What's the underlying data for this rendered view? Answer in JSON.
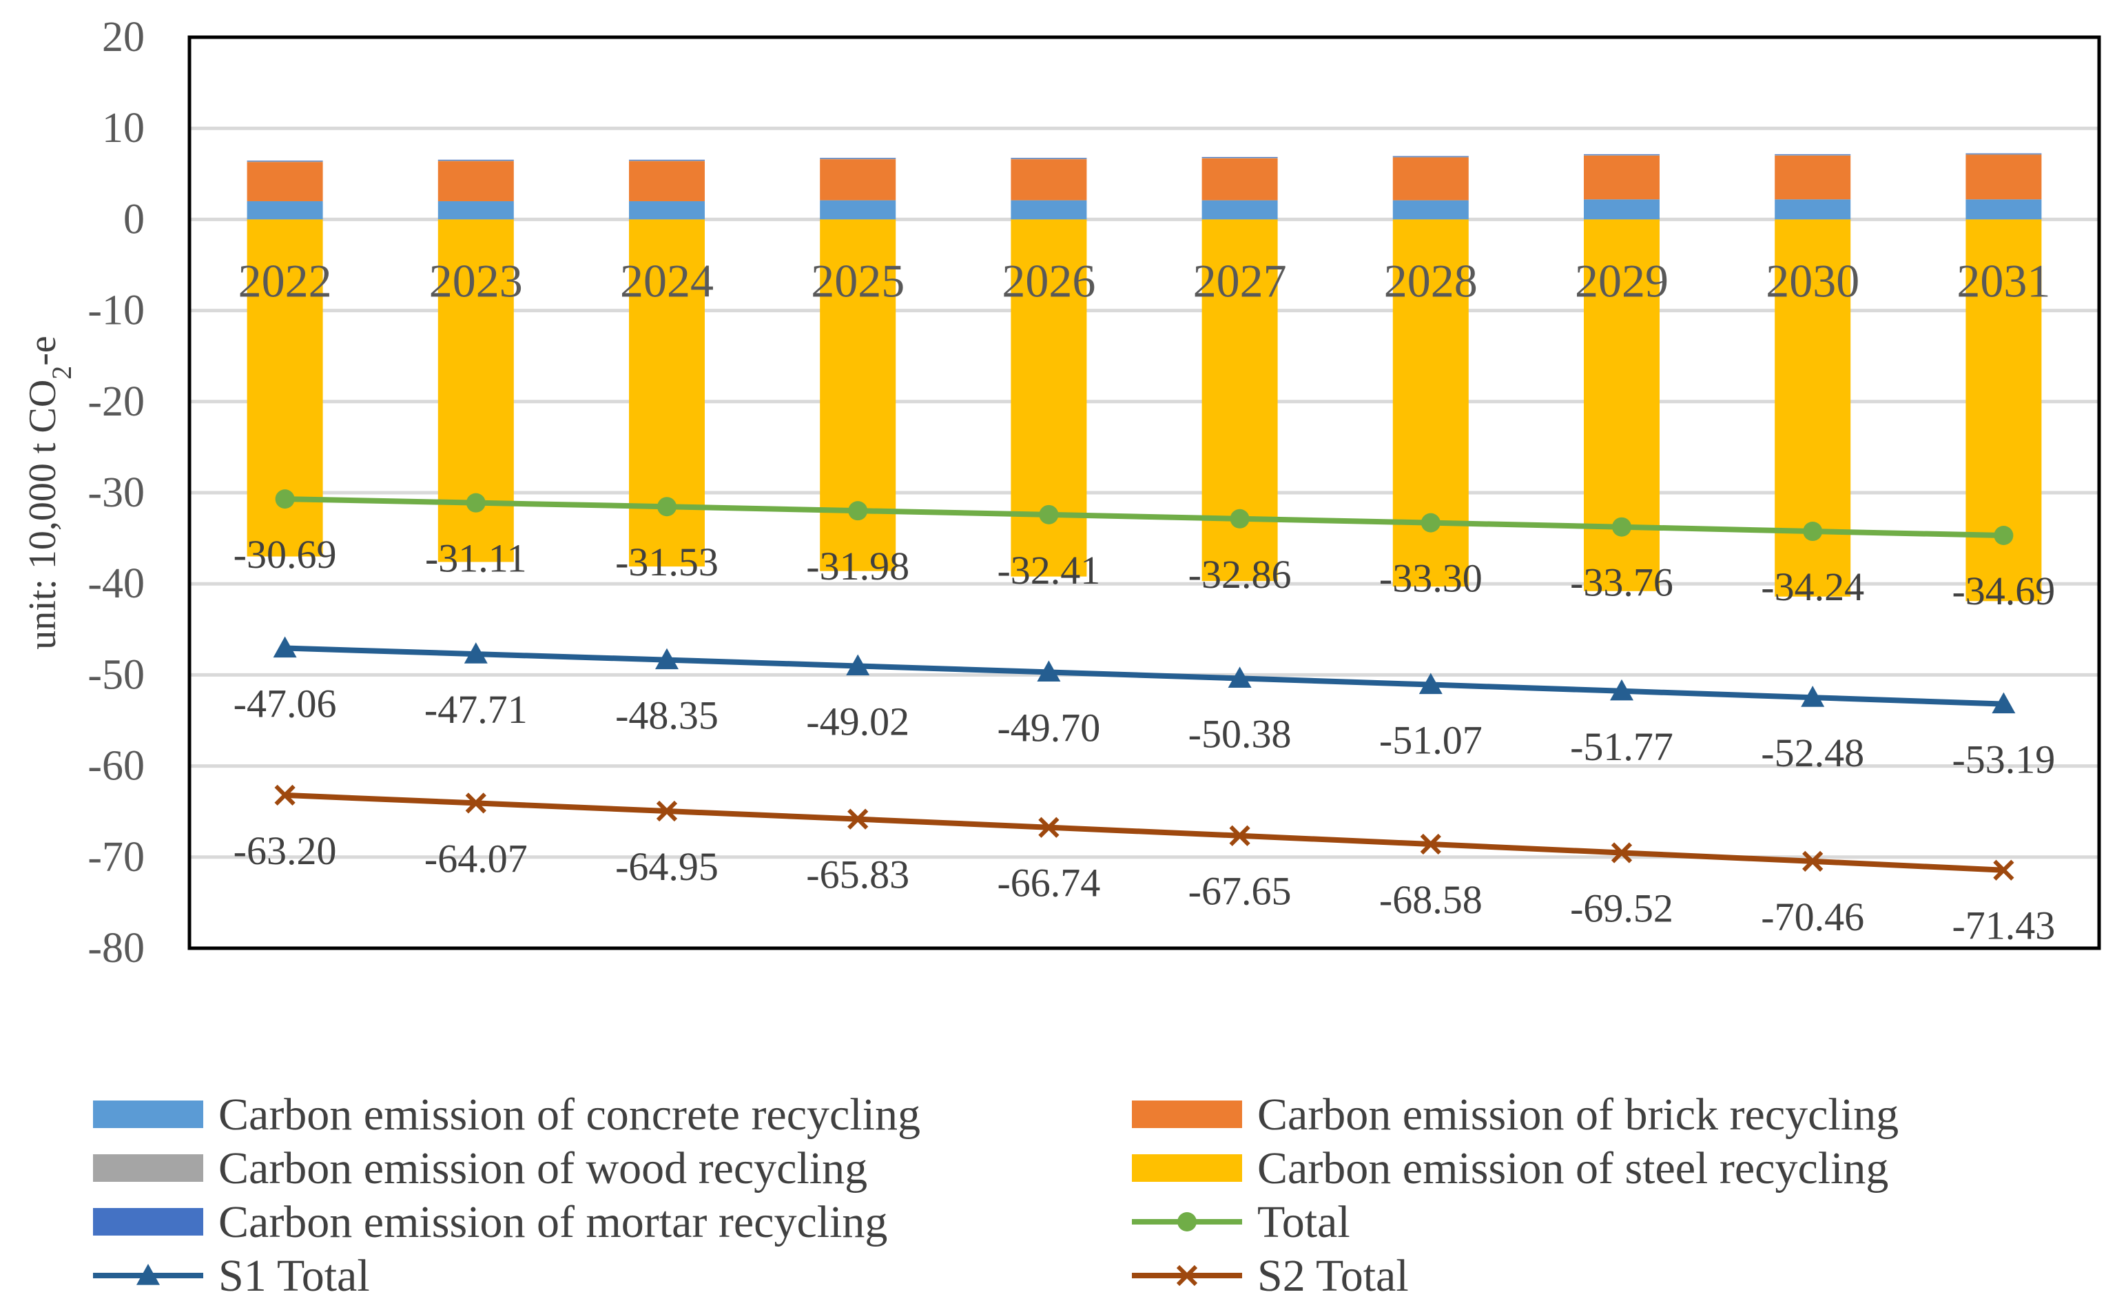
{
  "chart_data": {
    "type": "bar",
    "title": "",
    "xlabel": "",
    "ylabel_main": "unit: 10,000 t CO",
    "ylabel_sub": "2",
    "ylabel_tail": "-e",
    "ylim": [
      -80,
      20
    ],
    "yticks": [
      20,
      10,
      0,
      -10,
      -20,
      -30,
      -40,
      -50,
      -60,
      -70,
      -80
    ],
    "grid": true,
    "categories": [
      "2022",
      "2023",
      "2024",
      "2025",
      "2026",
      "2027",
      "2028",
      "2029",
      "2030",
      "2031"
    ],
    "series": [
      {
        "name": "Carbon emission of concrete recycling",
        "kind": "bar",
        "color": "#5B9BD5",
        "values": [
          2.0,
          2.0,
          2.0,
          2.1,
          2.1,
          2.1,
          2.1,
          2.2,
          2.2,
          2.2
        ]
      },
      {
        "name": "Carbon emission of brick recycling",
        "kind": "bar",
        "color": "#ED7D31",
        "values": [
          4.3,
          4.4,
          4.4,
          4.5,
          4.5,
          4.6,
          4.7,
          4.8,
          4.8,
          4.9
        ]
      },
      {
        "name": "Carbon emission of wood recycling",
        "kind": "bar",
        "color": "#A5A5A5",
        "values": [
          0.1,
          0.1,
          0.1,
          0.1,
          0.1,
          0.1,
          0.1,
          0.1,
          0.1,
          0.1
        ]
      },
      {
        "name": "Carbon emission of steel recycling",
        "kind": "bar",
        "color": "#FFC000",
        "values": [
          -37.0,
          -37.6,
          -38.1,
          -38.6,
          -39.2,
          -39.7,
          -40.3,
          -40.8,
          -41.4,
          -41.9
        ]
      },
      {
        "name": "Carbon emission of mortar recycling",
        "kind": "bar",
        "color": "#4472C4",
        "values": [
          0.05,
          0.05,
          0.05,
          0.05,
          0.05,
          0.05,
          0.05,
          0.05,
          0.05,
          0.05
        ]
      },
      {
        "name": "Total",
        "kind": "line",
        "color": "#70AD47",
        "marker": "circle",
        "values": [
          -30.69,
          -31.11,
          -31.53,
          -31.98,
          -32.41,
          -32.86,
          -33.3,
          -33.76,
          -34.24,
          -34.69
        ],
        "labels": [
          "-30.69",
          "-31.11",
          "-31.53",
          "-31.98",
          "-32.41",
          "-32.86",
          "-33.30",
          "-33.76",
          "-34.24",
          "-34.69"
        ]
      },
      {
        "name": "S1 Total",
        "kind": "line",
        "color": "#255E91",
        "marker": "triangle",
        "values": [
          -47.06,
          -47.71,
          -48.35,
          -49.02,
          -49.7,
          -50.38,
          -51.07,
          -51.77,
          -52.48,
          -53.19
        ],
        "labels": [
          "-47.06",
          "-47.71",
          "-48.35",
          "-49.02",
          "-49.70",
          "-50.38",
          "-51.07",
          "-51.77",
          "-52.48",
          "-53.19"
        ]
      },
      {
        "name": "S2 Total",
        "kind": "line",
        "color": "#9E480E",
        "marker": "x",
        "values": [
          -63.2,
          -64.07,
          -64.95,
          -65.83,
          -66.74,
          -67.65,
          -68.58,
          -69.52,
          -70.46,
          -71.43
        ],
        "labels": [
          "-63.20",
          "-64.07",
          "-64.95",
          "-65.83",
          "-66.74",
          "-67.65",
          "-68.58",
          "-69.52",
          "-70.46",
          "-71.43"
        ]
      }
    ],
    "legend": {
      "placement": "bottom",
      "order": [
        "Carbon emission of concrete recycling",
        "Carbon emission of brick recycling",
        "Carbon emission of wood recycling",
        "Carbon emission of steel recycling",
        "Carbon emission of mortar recycling",
        "Total",
        "S1 Total",
        "S2 Total"
      ]
    }
  }
}
